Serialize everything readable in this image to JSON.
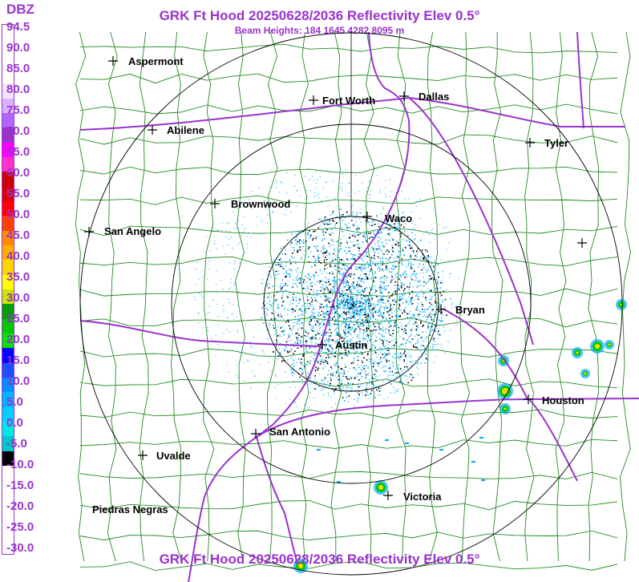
{
  "header": {
    "title": "GRK Ft Hood 20250628/2036 Reflectivity Elev 0.5°",
    "subtitle": "Beam Heights: 184 1645 4282 8095 m",
    "footer_title": "GRK Ft Hood 20250628/2036 Reflectivity Elev 0.5°"
  },
  "legend": {
    "title": "DBZ",
    "labels": [
      "94.5",
      "90.0",
      "85.0",
      "80.0",
      "75.0",
      "70.0",
      "65.0",
      "60.0",
      "55.0",
      "50.0",
      "45.0",
      "40.0",
      "35.0",
      "30.0",
      "25.0",
      "20.0",
      "15.0",
      "10.0",
      "5.0",
      "0.0",
      "-5.0",
      "-10.0",
      "-15.0",
      "-20.0",
      "-25.0",
      "-30.0"
    ],
    "colors": [
      "#ffffff",
      "#ffffff",
      "#ffffff",
      "#ffffff",
      "#f2e6ff",
      "#d9b3ff",
      "#b366ff",
      "#9933cc",
      "#ff00ff",
      "#ff33cc",
      "#cc0000",
      "#dd0000",
      "#ff0000",
      "#ff4000",
      "#ff8c00",
      "#ffb000",
      "#ffd700",
      "#ffff00",
      "#c8e600",
      "#00a000",
      "#00c800",
      "#00e600",
      "#0000ff",
      "#1e50ff",
      "#0090ff",
      "#00b4ff",
      "#00d0ff",
      "#00e8e8",
      "#00c8c8",
      "#000000",
      "#ffffff",
      "#ffffff",
      "#ffffff",
      "#ffffff",
      "#ffffff",
      "#ffffff"
    ],
    "accent": "#9933cc"
  },
  "cities": [
    {
      "name": "Aspermont"
    },
    {
      "name": "Fort Worth"
    },
    {
      "name": "Dallas"
    },
    {
      "name": "Abilene"
    },
    {
      "name": "Tyler"
    },
    {
      "name": "Brownwood"
    },
    {
      "name": "Waco"
    },
    {
      "name": "San Angelo"
    },
    {
      "name": "Bryan"
    },
    {
      "name": "Austin"
    },
    {
      "name": "Houston"
    },
    {
      "name": "San Antonio"
    },
    {
      "name": "Uvalde"
    },
    {
      "name": "Victoria"
    },
    {
      "name": "Piedras Negras"
    },
    {
      "name": ""
    }
  ],
  "colors": {
    "county_lines": "#228b22",
    "highways": "#9933cc",
    "range_rings": "#000000",
    "echo_light": "#66ccff",
    "echo_mid": "#00aaff",
    "echo_strong": "#00c800"
  }
}
